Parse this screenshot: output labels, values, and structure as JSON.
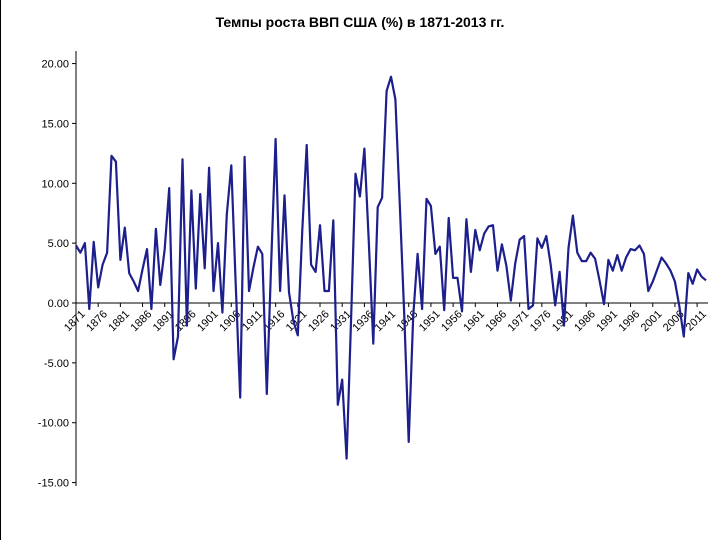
{
  "chart_data": {
    "type": "line",
    "title": "Темпы роста ВВП США (%) в 1871-2013 гг.",
    "xlabel": "",
    "ylabel": "",
    "ylim": [
      -15,
      20
    ],
    "yticks": [
      20,
      15,
      10,
      5,
      0,
      -5,
      -10,
      -15
    ],
    "ytick_labels": [
      "20.00",
      "15.00",
      "10.00",
      "5.00",
      "0.00",
      "-5.00",
      "-10.00",
      "-15.00"
    ],
    "xticks": [
      1871,
      1876,
      1881,
      1886,
      1891,
      1896,
      1901,
      1906,
      1911,
      1916,
      1921,
      1926,
      1931,
      1936,
      1941,
      1946,
      1951,
      1956,
      1961,
      1966,
      1971,
      1976,
      1981,
      1986,
      1991,
      1996,
      2001,
      2006,
      2011
    ],
    "xtick_labels": [
      "1871",
      "1876",
      "1881",
      "1886",
      "1891",
      "1896",
      "1901",
      "1906",
      "1911",
      "1916",
      "1921",
      "1926",
      "1931",
      "1936",
      "1941",
      "1946",
      "1951",
      "1956",
      "1961",
      "1966",
      "1971",
      "1976",
      "1981",
      "1986",
      "1991",
      "1996",
      "2001",
      "2006",
      "2011"
    ],
    "grid": false,
    "line_color": "#1c1f8c",
    "x_start": 1871,
    "x_end": 2013,
    "series": [
      {
        "values": [
          4.8,
          4.2,
          5.0,
          -0.5,
          5.1,
          1.3,
          3.2,
          4.2,
          12.3,
          11.8,
          3.6,
          6.3,
          2.5,
          1.8,
          1.0,
          2.8,
          4.5,
          -0.5,
          6.2,
          1.5,
          4.5,
          9.6,
          -4.7,
          -2.8,
          12.0,
          -1.9,
          9.4,
          1.2,
          9.1,
          2.9,
          11.3,
          1.0,
          5.0,
          -0.8,
          7.4,
          11.5,
          1.6,
          -7.9,
          12.2,
          1.0,
          3.0,
          4.7,
          4.1,
          -7.6,
          3.4,
          13.7,
          1.0,
          9.0,
          0.9,
          -1.5,
          -2.7,
          6.1,
          13.2,
          3.2,
          2.6,
          6.5,
          1.0,
          1.0,
          6.9,
          -8.5,
          -6.4,
          -13.0,
          -1.3,
          10.8,
          8.9,
          12.9,
          5.1,
          -3.4,
          8.0,
          8.8,
          17.7,
          18.9,
          17.0,
          8.0,
          -1.1,
          -11.6,
          -1.1,
          4.1,
          -0.5,
          8.7,
          8.1,
          4.1,
          4.7,
          -0.6,
          7.1,
          2.1,
          2.1,
          -0.7,
          7.0,
          2.6,
          6.1,
          4.4,
          5.8,
          6.4,
          6.5,
          2.7,
          4.9,
          3.1,
          0.2,
          3.3,
          5.3,
          5.6,
          -0.5,
          -0.2,
          5.4,
          4.6,
          5.6,
          3.2,
          -0.2,
          2.6,
          -1.9,
          4.6,
          7.3,
          4.2,
          3.5,
          3.5,
          4.2,
          3.7,
          1.9,
          -0.1,
          3.6,
          2.7,
          4.0,
          2.7,
          3.8,
          4.5,
          4.4,
          4.8,
          4.1,
          1.0,
          1.8,
          2.8,
          3.8,
          3.3,
          2.7,
          1.8,
          -0.3,
          -2.8,
          2.5,
          1.6,
          2.8,
          2.2,
          1.9
        ]
      }
    ]
  }
}
